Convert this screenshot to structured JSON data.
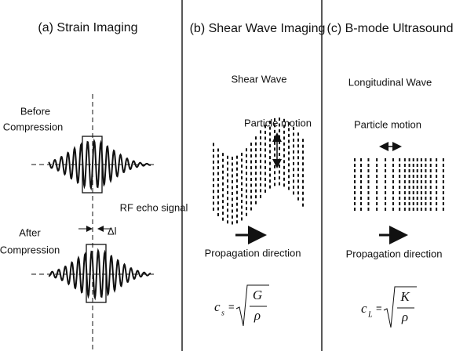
{
  "panels": [
    {
      "title": "(a) Strain Imaging",
      "before": [
        "Before",
        "Compression"
      ],
      "after": [
        "After",
        "Compression"
      ],
      "signal": "RF echo signal",
      "shift": "Δl"
    },
    {
      "title": "(b) Shear Wave Imaging",
      "wave": "Shear Wave",
      "motion": "Particle motion",
      "propagation": "Propagation direction",
      "formula": {
        "symbol": "c",
        "subscript": "s",
        "equals": "=",
        "numerator": "G",
        "denominator": "ρ"
      }
    },
    {
      "title": "(c) B-mode Ultrasound",
      "wave": "Longitudinal Wave",
      "motion": "Particle motion",
      "propagation": "Propagation direction",
      "formula": {
        "symbol": "c",
        "subscript": "L",
        "equals": "=",
        "numerator": "K",
        "denominator": "ρ"
      }
    }
  ]
}
